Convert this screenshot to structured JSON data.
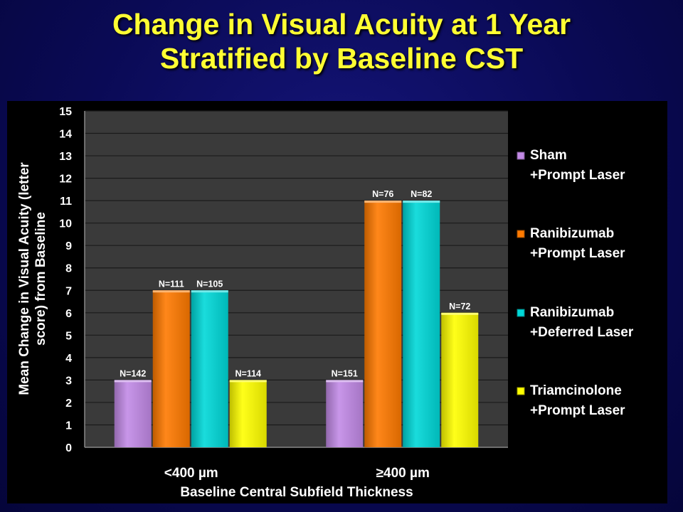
{
  "slide": {
    "title_line1": "Change in Visual Acuity at 1 Year",
    "title_line2": "Stratified by Baseline CST"
  },
  "colors": {
    "title": "#ffff33",
    "background": "#0a0a55",
    "plot_area": "#3a3a3a",
    "panel": "#000000"
  },
  "chart_data": {
    "type": "bar",
    "categories": [
      "<400 µm",
      "≥400 µm"
    ],
    "xlabel": "Baseline Central Subfield Thickness",
    "ylabel_line1": "Mean Change in Visual Acuity (letter",
    "ylabel_line2": "score) from Baseline",
    "ylim": [
      0,
      15
    ],
    "yticks": [
      0,
      1,
      2,
      3,
      4,
      5,
      6,
      7,
      8,
      9,
      10,
      11,
      12,
      13,
      14,
      15
    ],
    "grid": true,
    "legend_position": "right",
    "series": [
      {
        "name_line1": "Sham",
        "name_line2": "+Prompt Laser",
        "color": "#c28ae6",
        "values": [
          3,
          3
        ],
        "labels": [
          "N=142",
          "N=151"
        ]
      },
      {
        "name_line1": "Ranibizumab",
        "name_line2": "+Prompt Laser",
        "color": "#ff7a00",
        "values": [
          7,
          11
        ],
        "labels": [
          "N=111",
          "N=76"
        ]
      },
      {
        "name_line1": "Ranibizumab",
        "name_line2": "+Deferred Laser",
        "color": "#00d8d8",
        "values": [
          7,
          11
        ],
        "labels": [
          "N=105",
          "N=82"
        ]
      },
      {
        "name_line1": "Triamcinolone",
        "name_line2": "+Prompt Laser",
        "color": "#ffff00",
        "values": [
          3,
          6
        ],
        "labels": [
          "N=114",
          "N=72"
        ]
      }
    ]
  }
}
